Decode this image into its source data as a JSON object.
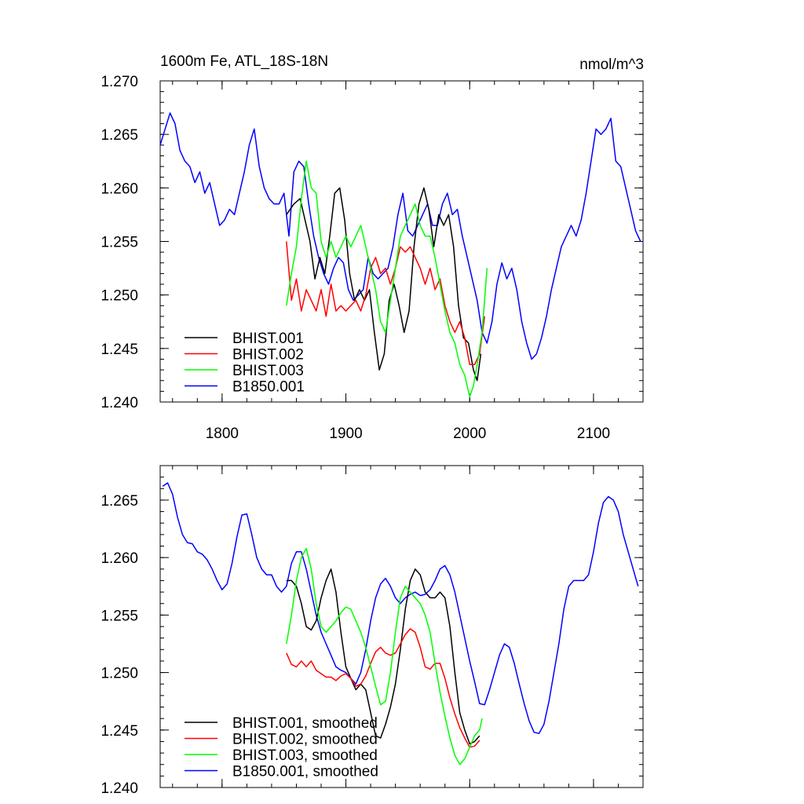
{
  "chart_data": [
    {
      "type": "line",
      "title": "1600m Fe, ATL_18S-18N",
      "units": "nmol/m^3",
      "xlim": [
        1750,
        2140
      ],
      "ylim": [
        1.24,
        1.27
      ],
      "xticks": [
        1800,
        1900,
        2000,
        2100
      ],
      "xtick_labels": [
        "1800",
        "1900",
        "2000",
        "2100"
      ],
      "yticks": [
        1.24,
        1.245,
        1.25,
        1.255,
        1.26,
        1.265,
        1.27
      ],
      "ytick_labels": [
        "1.240",
        "1.245",
        "1.250",
        "1.255",
        "1.260",
        "1.265",
        "1.270"
      ],
      "legend_position": "bottom-left",
      "series": [
        {
          "name": "BHIST.001",
          "color": "#000000",
          "x": [
            1852,
            1858,
            1863,
            1867,
            1871,
            1875,
            1879,
            1883,
            1887,
            1891,
            1895,
            1899,
            1903,
            1907,
            1911,
            1915,
            1919,
            1923,
            1927,
            1931,
            1935,
            1939,
            1943,
            1947,
            1951,
            1955,
            1959,
            1963,
            1967,
            1971,
            1975,
            1979,
            1983,
            1987,
            1991,
            1995,
            1999,
            2003,
            2006,
            2009
          ],
          "y": [
            1.2575,
            1.2585,
            1.259,
            1.257,
            1.255,
            1.2515,
            1.2535,
            1.252,
            1.2555,
            1.2595,
            1.26,
            1.257,
            1.252,
            1.2495,
            1.2505,
            1.2495,
            1.2505,
            1.2465,
            1.243,
            1.2445,
            1.2495,
            1.251,
            1.249,
            1.2465,
            1.2485,
            1.2545,
            1.2585,
            1.26,
            1.258,
            1.2545,
            1.2575,
            1.2565,
            1.2575,
            1.2545,
            1.249,
            1.246,
            1.2455,
            1.243,
            1.242,
            1.2445
          ]
        },
        {
          "name": "BHIST.002",
          "color": "#ff0000",
          "x": [
            1852,
            1856,
            1860,
            1864,
            1868,
            1872,
            1876,
            1880,
            1884,
            1888,
            1892,
            1896,
            1900,
            1904,
            1908,
            1912,
            1916,
            1920,
            1924,
            1928,
            1932,
            1936,
            1940,
            1944,
            1948,
            1952,
            1956,
            1960,
            1964,
            1968,
            1972,
            1976,
            1980,
            1984,
            1988,
            1992,
            1996,
            2000,
            2004,
            2008,
            2012
          ],
          "y": [
            1.255,
            1.2495,
            1.2515,
            1.2485,
            1.2505,
            1.2495,
            1.2485,
            1.2505,
            1.248,
            1.251,
            1.2485,
            1.249,
            1.2485,
            1.249,
            1.2495,
            1.2485,
            1.25,
            1.2525,
            1.2535,
            1.252,
            1.2525,
            1.251,
            1.2525,
            1.2545,
            1.254,
            1.2545,
            1.2535,
            1.2525,
            1.251,
            1.2525,
            1.2505,
            1.2515,
            1.249,
            1.2475,
            1.2465,
            1.2475,
            1.246,
            1.2435,
            1.2435,
            1.2445,
            1.248
          ]
        },
        {
          "name": "BHIST.003",
          "color": "#00ff00",
          "x": [
            1852,
            1856,
            1860,
            1864,
            1868,
            1872,
            1876,
            1880,
            1884,
            1888,
            1892,
            1896,
            1900,
            1904,
            1908,
            1912,
            1916,
            1920,
            1924,
            1928,
            1932,
            1936,
            1940,
            1944,
            1948,
            1952,
            1956,
            1960,
            1964,
            1968,
            1972,
            1976,
            1980,
            1984,
            1988,
            1992,
            1996,
            2000,
            2003,
            2006,
            2010,
            2014
          ],
          "y": [
            1.249,
            1.252,
            1.2545,
            1.259,
            1.2625,
            1.26,
            1.2595,
            1.255,
            1.2535,
            1.255,
            1.2535,
            1.2545,
            1.2555,
            1.2545,
            1.2555,
            1.2565,
            1.2545,
            1.2525,
            1.2505,
            1.2475,
            1.2465,
            1.2495,
            1.2525,
            1.2555,
            1.2565,
            1.2575,
            1.2585,
            1.2565,
            1.2555,
            1.2555,
            1.2535,
            1.251,
            1.2485,
            1.2465,
            1.2455,
            1.2435,
            1.2425,
            1.2405,
            1.2415,
            1.2435,
            1.2465,
            1.2525
          ]
        },
        {
          "name": "B1850.001",
          "color": "#0000ff",
          "x": [
            1750,
            1754,
            1758,
            1762,
            1766,
            1770,
            1774,
            1778,
            1782,
            1786,
            1790,
            1794,
            1798,
            1802,
            1806,
            1810,
            1814,
            1818,
            1822,
            1826,
            1830,
            1834,
            1838,
            1842,
            1846,
            1850,
            1854,
            1858,
            1862,
            1866,
            1870,
            1874,
            1878,
            1882,
            1886,
            1890,
            1894,
            1898,
            1902,
            1906,
            1910,
            1914,
            1918,
            1922,
            1926,
            1930,
            1934,
            1938,
            1942,
            1946,
            1950,
            1954,
            1958,
            1962,
            1966,
            1970,
            1974,
            1978,
            1982,
            1986,
            1990,
            1994,
            1998,
            2002,
            2006,
            2010,
            2014,
            2018,
            2022,
            2026,
            2030,
            2034,
            2038,
            2042,
            2046,
            2050,
            2054,
            2058,
            2062,
            2066,
            2070,
            2074,
            2078,
            2082,
            2086,
            2090,
            2094,
            2098,
            2102,
            2106,
            2110,
            2114,
            2118,
            2122,
            2126,
            2130,
            2134,
            2138
          ],
          "y": [
            1.264,
            1.2655,
            1.267,
            1.266,
            1.2635,
            1.2625,
            1.262,
            1.2605,
            1.2615,
            1.2595,
            1.2605,
            1.2585,
            1.2565,
            1.257,
            1.258,
            1.2575,
            1.2595,
            1.2615,
            1.264,
            1.2655,
            1.262,
            1.26,
            1.259,
            1.2585,
            1.2585,
            1.2595,
            1.2555,
            1.2615,
            1.2625,
            1.262,
            1.2585,
            1.2555,
            1.2535,
            1.252,
            1.251,
            1.2525,
            1.2535,
            1.253,
            1.2505,
            1.2495,
            1.25,
            1.2505,
            1.2535,
            1.252,
            1.2515,
            1.252,
            1.2525,
            1.2545,
            1.2575,
            1.2595,
            1.256,
            1.2555,
            1.2565,
            1.2575,
            1.2585,
            1.2565,
            1.2565,
            1.2585,
            1.2595,
            1.2575,
            1.258,
            1.2555,
            1.2535,
            1.2515,
            1.2495,
            1.2465,
            1.2455,
            1.2475,
            1.251,
            1.253,
            1.2515,
            1.2525,
            1.2505,
            1.2475,
            1.2455,
            1.244,
            1.2445,
            1.246,
            1.248,
            1.2505,
            1.2525,
            1.2545,
            1.2555,
            1.2565,
            1.2555,
            1.257,
            1.2595,
            1.2625,
            1.2655,
            1.265,
            1.2655,
            1.2665,
            1.2625,
            1.262,
            1.26,
            1.258,
            1.256,
            1.255
          ]
        }
      ]
    },
    {
      "type": "line",
      "xlim": [
        1750,
        2140
      ],
      "ylim": [
        1.24,
        1.268
      ],
      "xticks": [
        1800,
        1900,
        2000,
        2100
      ],
      "yticks": [
        1.24,
        1.245,
        1.25,
        1.255,
        1.26,
        1.265
      ],
      "ytick_labels": [
        "1.240",
        "1.245",
        "1.250",
        "1.255",
        "1.260",
        "1.265"
      ],
      "legend_position": "bottom-left",
      "series": [
        {
          "name": "BHIST.001, smoothed",
          "color": "#000000",
          "x": [
            1852,
            1856,
            1860,
            1864,
            1868,
            1872,
            1876,
            1880,
            1884,
            1888,
            1892,
            1896,
            1900,
            1904,
            1908,
            1912,
            1916,
            1920,
            1924,
            1928,
            1932,
            1936,
            1940,
            1944,
            1948,
            1952,
            1956,
            1960,
            1964,
            1968,
            1972,
            1976,
            1980,
            1984,
            1988,
            1992,
            1996,
            2000,
            2004,
            2008
          ],
          "y": [
            1.258,
            1.258,
            1.2575,
            1.256,
            1.254,
            1.2537,
            1.2545,
            1.2565,
            1.258,
            1.259,
            1.257,
            1.2535,
            1.2505,
            1.2495,
            1.2485,
            1.249,
            1.2485,
            1.2465,
            1.2445,
            1.2443,
            1.2455,
            1.247,
            1.249,
            1.252,
            1.2555,
            1.258,
            1.259,
            1.2585,
            1.257,
            1.2565,
            1.2565,
            1.257,
            1.2565,
            1.254,
            1.25,
            1.2465,
            1.245,
            1.2438,
            1.244,
            1.2445
          ]
        },
        {
          "name": "BHIST.002, smoothed",
          "color": "#ff0000",
          "x": [
            1852,
            1856,
            1860,
            1864,
            1868,
            1872,
            1876,
            1880,
            1884,
            1888,
            1892,
            1896,
            1900,
            1904,
            1908,
            1912,
            1916,
            1920,
            1924,
            1928,
            1932,
            1936,
            1940,
            1944,
            1948,
            1952,
            1956,
            1960,
            1964,
            1968,
            1972,
            1976,
            1980,
            1984,
            1988,
            1992,
            1996,
            2000,
            2004,
            2008
          ],
          "y": [
            1.2517,
            1.2507,
            1.2505,
            1.251,
            1.2505,
            1.251,
            1.2502,
            1.2499,
            1.2496,
            1.2496,
            1.2493,
            1.2497,
            1.2499,
            1.2495,
            1.2488,
            1.249,
            1.2497,
            1.2508,
            1.2518,
            1.2522,
            1.2517,
            1.2515,
            1.2517,
            1.2525,
            1.2533,
            1.2538,
            1.2535,
            1.2522,
            1.2505,
            1.2503,
            1.2508,
            1.2508,
            1.2495,
            1.2478,
            1.2464,
            1.2452,
            1.2443,
            1.2435,
            1.2436,
            1.2441
          ]
        },
        {
          "name": "BHIST.003, smoothed",
          "color": "#00ff00",
          "x": [
            1852,
            1856,
            1860,
            1864,
            1868,
            1872,
            1876,
            1880,
            1884,
            1888,
            1892,
            1896,
            1900,
            1904,
            1908,
            1912,
            1916,
            1920,
            1924,
            1928,
            1932,
            1936,
            1940,
            1944,
            1948,
            1952,
            1956,
            1960,
            1964,
            1968,
            1972,
            1976,
            1980,
            1984,
            1988,
            1992,
            1996,
            2000,
            2004,
            2008,
            2010
          ],
          "y": [
            1.2525,
            1.255,
            1.258,
            1.26,
            1.2608,
            1.259,
            1.256,
            1.254,
            1.2535,
            1.254,
            1.2545,
            1.2552,
            1.2557,
            1.2555,
            1.2545,
            1.2535,
            1.2522,
            1.2505,
            1.2488,
            1.2472,
            1.2475,
            1.25,
            1.2535,
            1.2565,
            1.2575,
            1.257,
            1.2565,
            1.256,
            1.255,
            1.2535,
            1.2508,
            1.2483,
            1.2462,
            1.2443,
            1.2428,
            1.242,
            1.2425,
            1.2435,
            1.2445,
            1.245,
            1.246
          ]
        },
        {
          "name": "B1850.001, smoothed",
          "color": "#0000ff",
          "x": [
            1752,
            1756,
            1760,
            1764,
            1768,
            1772,
            1776,
            1780,
            1784,
            1788,
            1792,
            1796,
            1800,
            1804,
            1808,
            1812,
            1816,
            1820,
            1824,
            1828,
            1832,
            1836,
            1840,
            1844,
            1848,
            1852,
            1856,
            1860,
            1864,
            1868,
            1872,
            1876,
            1880,
            1884,
            1888,
            1892,
            1896,
            1900,
            1904,
            1908,
            1912,
            1916,
            1920,
            1924,
            1928,
            1932,
            1936,
            1940,
            1944,
            1948,
            1952,
            1956,
            1960,
            1964,
            1968,
            1972,
            1976,
            1980,
            1984,
            1988,
            1992,
            1996,
            2000,
            2004,
            2008,
            2012,
            2016,
            2020,
            2024,
            2028,
            2032,
            2036,
            2040,
            2044,
            2048,
            2052,
            2056,
            2060,
            2064,
            2068,
            2072,
            2076,
            2080,
            2084,
            2088,
            2092,
            2096,
            2100,
            2104,
            2108,
            2112,
            2116,
            2120,
            2124,
            2128,
            2132,
            2136
          ],
          "y": [
            1.2662,
            1.2665,
            1.2655,
            1.2635,
            1.262,
            1.2613,
            1.2612,
            1.2605,
            1.2603,
            1.2598,
            1.259,
            1.258,
            1.2572,
            1.2577,
            1.2595,
            1.2618,
            1.2637,
            1.2638,
            1.262,
            1.26,
            1.259,
            1.2585,
            1.2585,
            1.2575,
            1.257,
            1.2575,
            1.2595,
            1.2605,
            1.2605,
            1.259,
            1.257,
            1.255,
            1.2535,
            1.2525,
            1.2515,
            1.2505,
            1.2502,
            1.25,
            1.2495,
            1.249,
            1.25,
            1.252,
            1.2545,
            1.2565,
            1.2577,
            1.2582,
            1.2575,
            1.2565,
            1.256,
            1.2565,
            1.2568,
            1.257,
            1.2567,
            1.2568,
            1.2572,
            1.258,
            1.259,
            1.2593,
            1.2585,
            1.257,
            1.255,
            1.253,
            1.251,
            1.2492,
            1.2473,
            1.2472,
            1.2485,
            1.25,
            1.2515,
            1.2525,
            1.2522,
            1.2508,
            1.249,
            1.2473,
            1.2458,
            1.2448,
            1.2447,
            1.2455,
            1.2475,
            1.25,
            1.2525,
            1.2555,
            1.2575,
            1.258,
            1.258,
            1.258,
            1.2585,
            1.2605,
            1.263,
            1.2648,
            1.2653,
            1.265,
            1.264,
            1.262,
            1.2605,
            1.259,
            1.2575
          ]
        }
      ]
    }
  ]
}
